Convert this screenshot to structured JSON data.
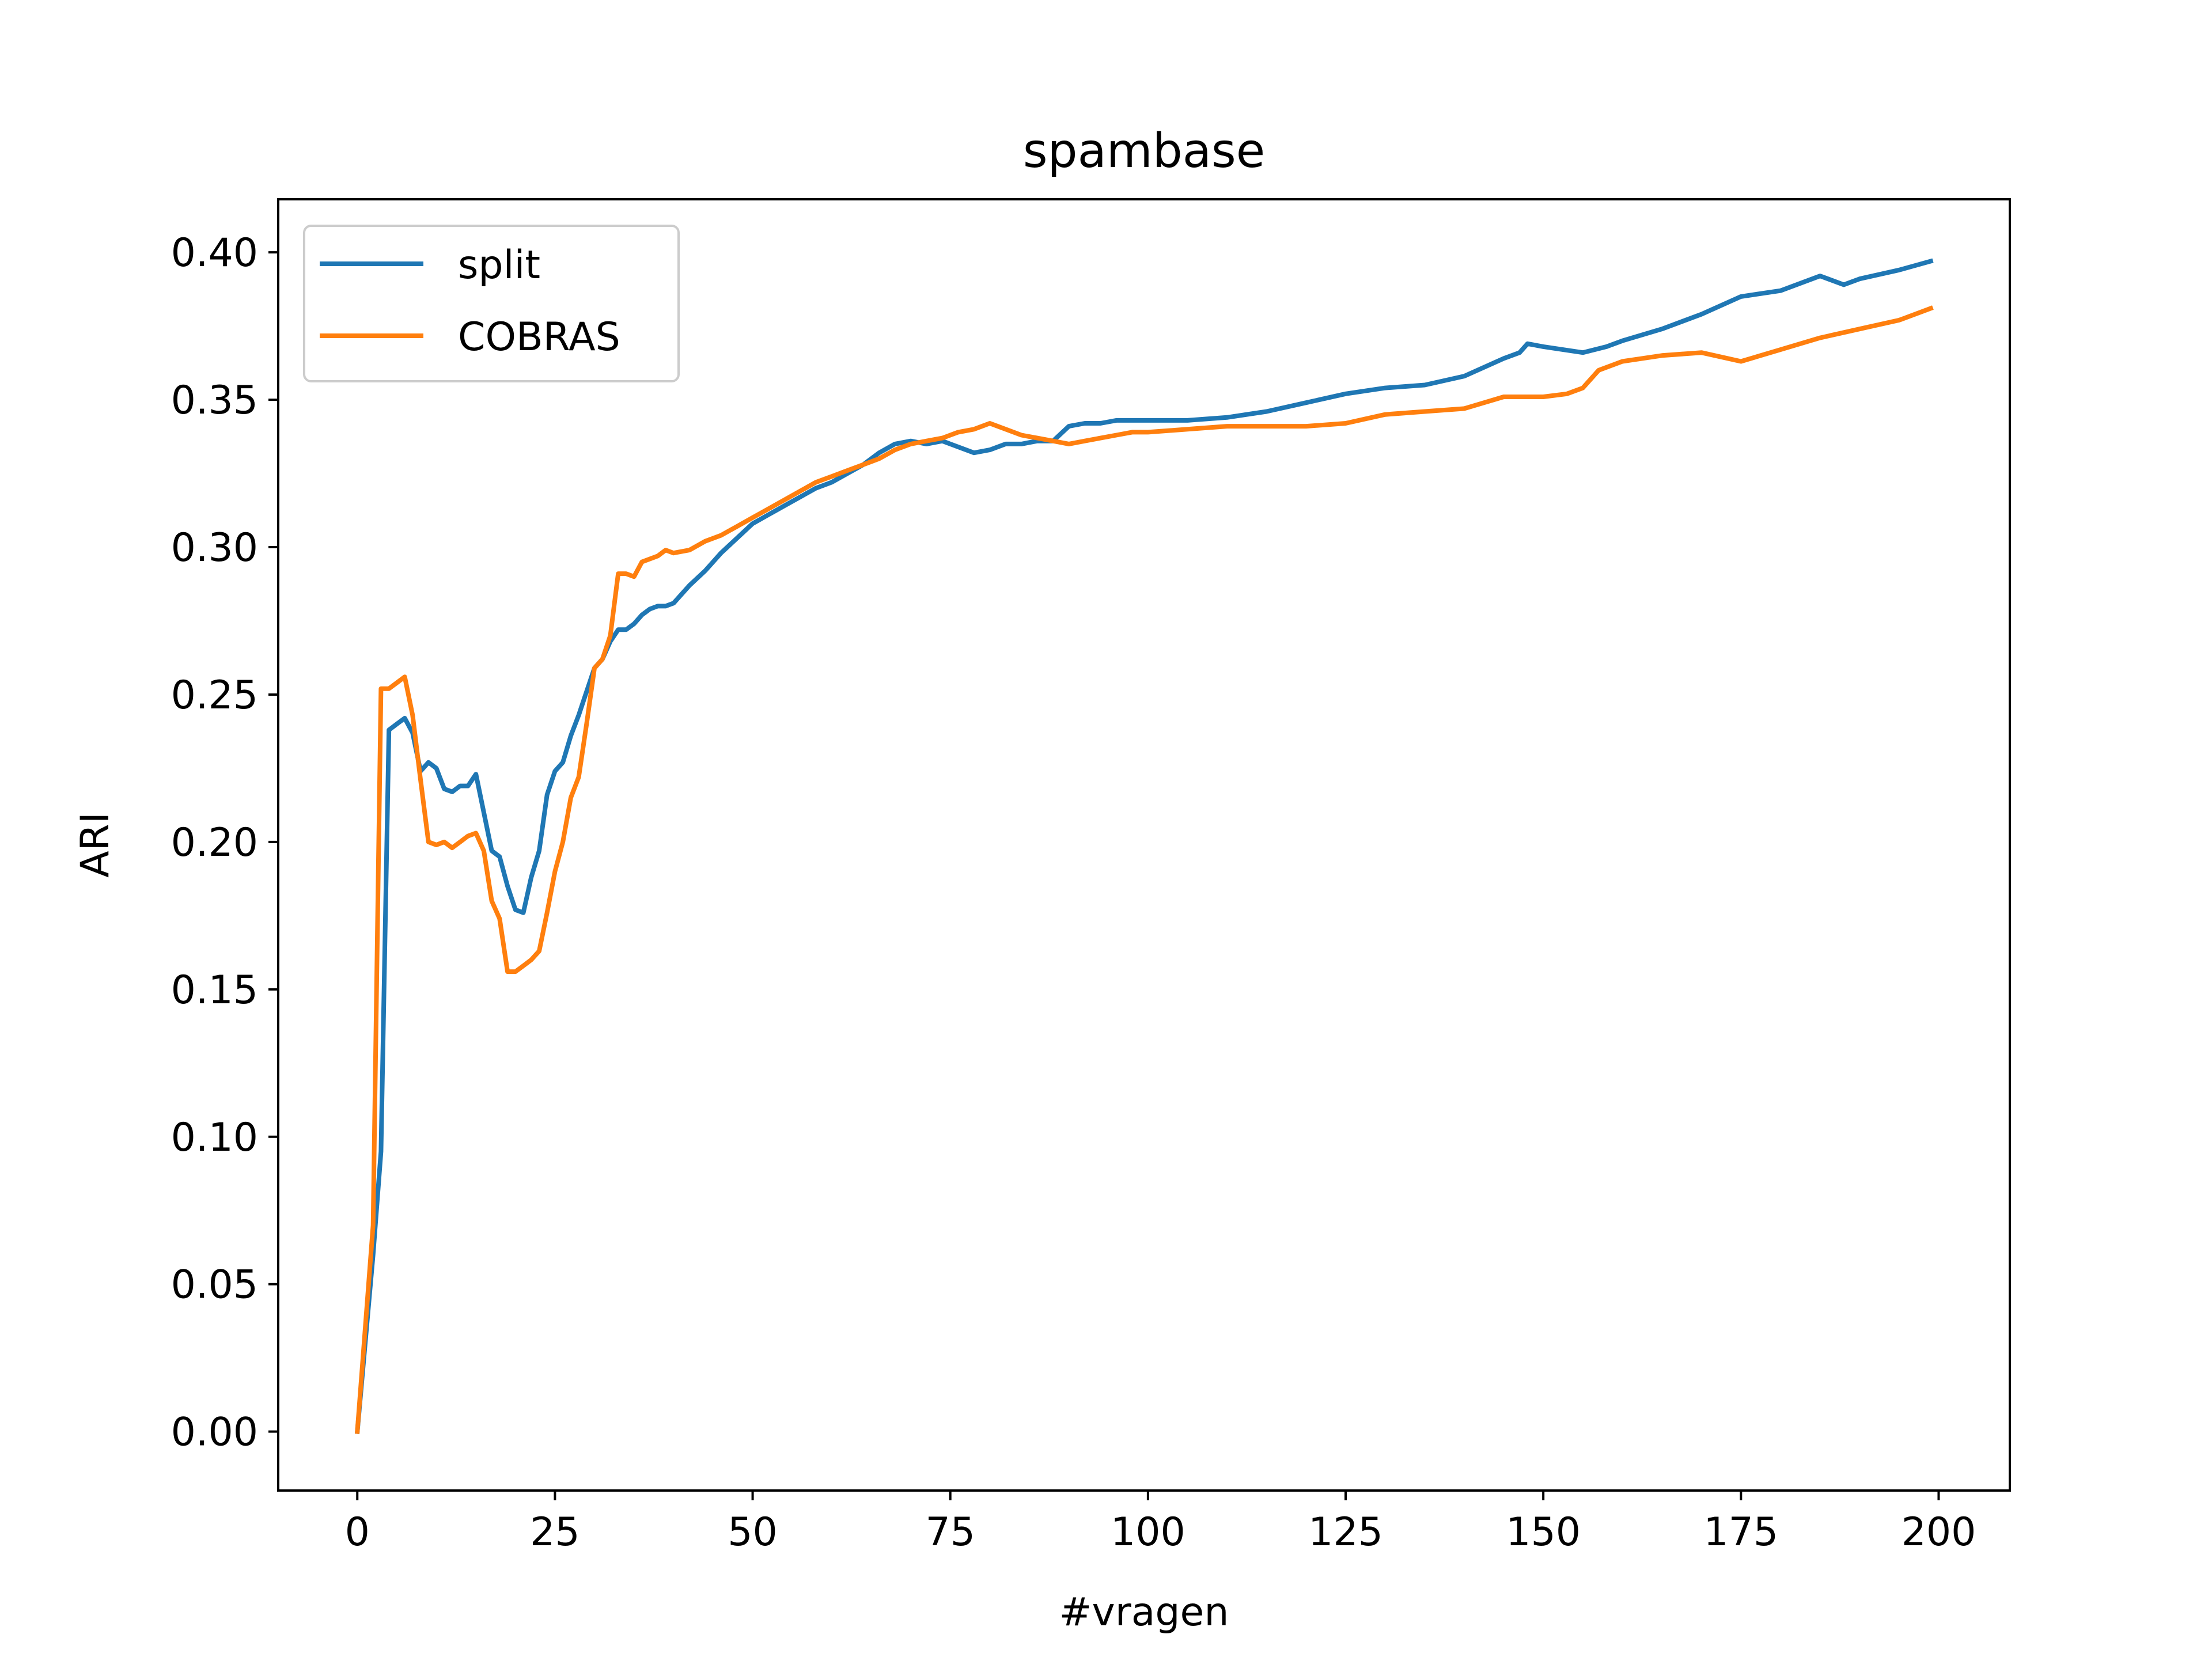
{
  "chart_data": {
    "type": "line",
    "title": "spambase",
    "xlabel": "#vragen",
    "ylabel": "ARI",
    "xlim": [
      -10,
      209
    ],
    "ylim": [
      -0.02,
      0.418
    ],
    "xticks": [
      0,
      25,
      50,
      75,
      100,
      125,
      150,
      175,
      200
    ],
    "xtick_labels": [
      "0",
      "25",
      "50",
      "75",
      "100",
      "125",
      "150",
      "175",
      "200"
    ],
    "yticks": [
      0.0,
      0.05,
      0.1,
      0.15,
      0.2,
      0.25,
      0.3,
      0.35,
      0.4
    ],
    "ytick_labels": [
      "0.00",
      "0.05",
      "0.10",
      "0.15",
      "0.20",
      "0.25",
      "0.30",
      "0.35",
      "0.40"
    ],
    "grid": false,
    "legend": "top-left",
    "series": [
      {
        "name": "split",
        "color": "#1f77b4",
        "x": [
          0,
          1,
          2,
          3,
          4,
          5,
          6,
          7,
          8,
          9,
          10,
          11,
          12,
          13,
          14,
          15,
          16,
          17,
          18,
          19,
          20,
          21,
          22,
          23,
          24,
          25,
          26,
          27,
          28,
          29,
          30,
          31,
          32,
          33,
          34,
          35,
          36,
          37,
          38,
          39,
          40,
          42,
          44,
          46,
          48,
          50,
          52,
          54,
          56,
          58,
          60,
          62,
          64,
          66,
          68,
          70,
          72,
          74,
          76,
          78,
          80,
          82,
          84,
          86,
          88,
          90,
          92,
          94,
          96,
          98,
          100,
          105,
          110,
          115,
          120,
          125,
          130,
          135,
          140,
          145,
          147,
          148,
          150,
          155,
          158,
          160,
          165,
          170,
          175,
          180,
          185,
          188,
          190,
          195,
          199
        ],
        "y": [
          0.0,
          0.03,
          0.06,
          0.095,
          0.238,
          0.24,
          0.242,
          0.237,
          0.224,
          0.227,
          0.225,
          0.218,
          0.217,
          0.219,
          0.219,
          0.223,
          0.21,
          0.197,
          0.195,
          0.185,
          0.177,
          0.176,
          0.188,
          0.197,
          0.216,
          0.224,
          0.227,
          0.236,
          0.243,
          0.251,
          0.259,
          0.262,
          0.268,
          0.272,
          0.272,
          0.274,
          0.277,
          0.279,
          0.28,
          0.28,
          0.281,
          0.287,
          0.292,
          0.298,
          0.303,
          0.308,
          0.311,
          0.314,
          0.317,
          0.32,
          0.322,
          0.325,
          0.328,
          0.332,
          0.335,
          0.336,
          0.335,
          0.336,
          0.334,
          0.332,
          0.333,
          0.335,
          0.335,
          0.336,
          0.336,
          0.341,
          0.342,
          0.342,
          0.343,
          0.343,
          0.343,
          0.343,
          0.344,
          0.346,
          0.349,
          0.352,
          0.354,
          0.355,
          0.358,
          0.364,
          0.366,
          0.369,
          0.368,
          0.366,
          0.368,
          0.37,
          0.374,
          0.379,
          0.385,
          0.387,
          0.392,
          0.389,
          0.391,
          0.394,
          0.397
        ]
      },
      {
        "name": "COBRAS",
        "color": "#ff7f0e",
        "x": [
          0,
          1,
          2,
          3,
          4,
          5,
          6,
          7,
          8,
          9,
          10,
          11,
          12,
          13,
          14,
          15,
          16,
          17,
          18,
          19,
          20,
          21,
          22,
          23,
          24,
          25,
          26,
          27,
          28,
          29,
          30,
          31,
          32,
          33,
          34,
          35,
          36,
          37,
          38,
          39,
          40,
          42,
          44,
          46,
          48,
          50,
          52,
          54,
          56,
          58,
          60,
          62,
          64,
          66,
          68,
          70,
          72,
          74,
          76,
          78,
          80,
          82,
          84,
          86,
          88,
          90,
          92,
          94,
          96,
          98,
          100,
          105,
          110,
          115,
          120,
          125,
          130,
          135,
          140,
          145,
          150,
          153,
          155,
          157,
          160,
          165,
          170,
          175,
          180,
          185,
          190,
          195,
          199
        ],
        "y": [
          0.0,
          0.035,
          0.07,
          0.252,
          0.252,
          0.254,
          0.256,
          0.243,
          0.221,
          0.2,
          0.199,
          0.2,
          0.198,
          0.2,
          0.202,
          0.203,
          0.197,
          0.18,
          0.174,
          0.156,
          0.156,
          0.158,
          0.16,
          0.163,
          0.176,
          0.19,
          0.2,
          0.215,
          0.222,
          0.24,
          0.259,
          0.262,
          0.27,
          0.291,
          0.291,
          0.29,
          0.295,
          0.296,
          0.297,
          0.299,
          0.298,
          0.299,
          0.302,
          0.304,
          0.307,
          0.31,
          0.313,
          0.316,
          0.319,
          0.322,
          0.324,
          0.326,
          0.328,
          0.33,
          0.333,
          0.335,
          0.336,
          0.337,
          0.339,
          0.34,
          0.342,
          0.34,
          0.338,
          0.337,
          0.336,
          0.335,
          0.336,
          0.337,
          0.338,
          0.339,
          0.339,
          0.34,
          0.341,
          0.341,
          0.341,
          0.342,
          0.345,
          0.346,
          0.347,
          0.351,
          0.351,
          0.352,
          0.354,
          0.36,
          0.363,
          0.365,
          0.366,
          0.363,
          0.367,
          0.371,
          0.374,
          0.377,
          0.381
        ]
      }
    ]
  }
}
